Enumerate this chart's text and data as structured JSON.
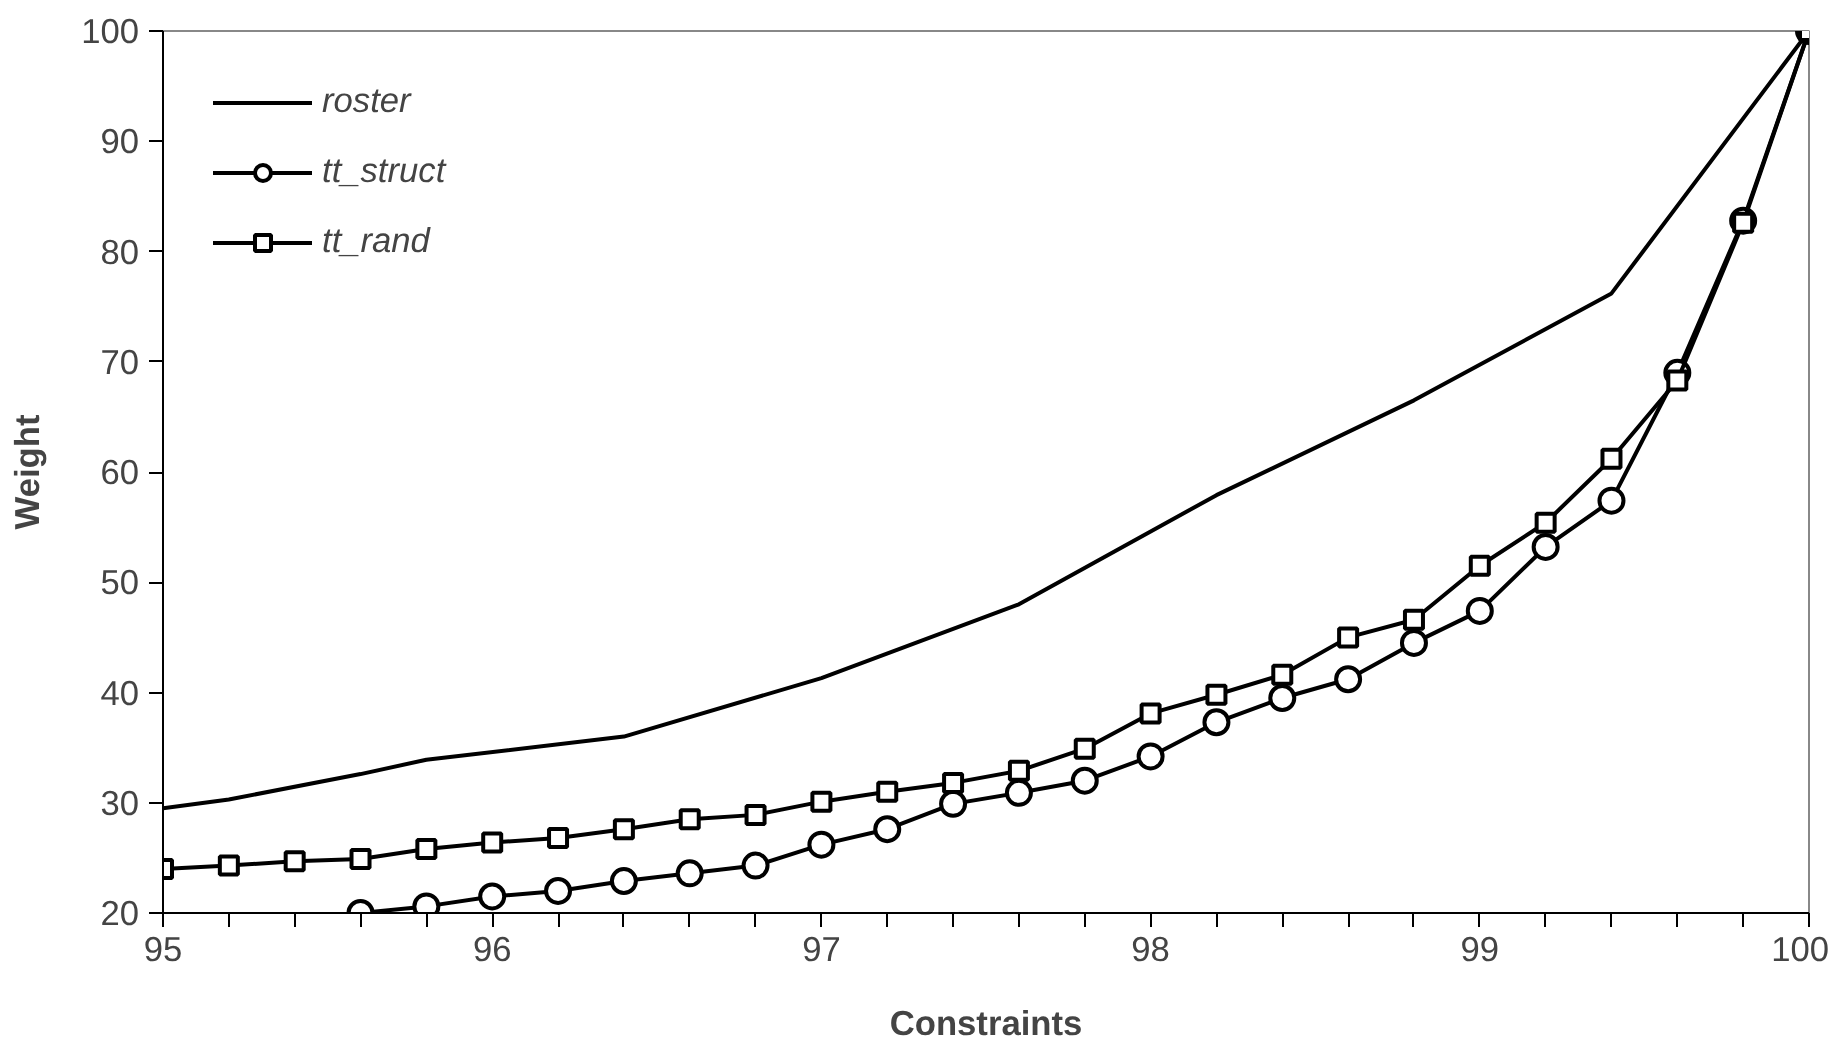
{
  "chart_data": {
    "type": "line",
    "xlabel": "Constraints",
    "ylabel": "Weight",
    "xlim": [
      95,
      100
    ],
    "ylim": [
      20,
      100
    ],
    "xticks": [
      95,
      {
        "value": 95.2,
        "label": null
      },
      {
        "value": 95.4,
        "label": null
      },
      {
        "value": 95.6,
        "label": null
      },
      {
        "value": 95.8,
        "label": null
      },
      96,
      {
        "value": 96.2,
        "label": null
      },
      {
        "value": 96.4,
        "label": null
      },
      {
        "value": 96.6,
        "label": null
      },
      {
        "value": 96.8,
        "label": null
      },
      97,
      {
        "value": 97.2,
        "label": null
      },
      {
        "value": 97.4,
        "label": null
      },
      {
        "value": 97.6,
        "label": null
      },
      {
        "value": 97.8,
        "label": null
      },
      98,
      {
        "value": 98.2,
        "label": null
      },
      {
        "value": 98.4,
        "label": null
      },
      {
        "value": 98.6,
        "label": null
      },
      {
        "value": 98.8,
        "label": null
      },
      99,
      {
        "value": 99.2,
        "label": null
      },
      {
        "value": 99.4,
        "label": null
      },
      {
        "value": 99.6,
        "label": null
      },
      {
        "value": 99.8,
        "label": null
      },
      100
    ],
    "yticks": [
      20,
      30,
      40,
      50,
      60,
      70,
      80,
      90,
      100
    ],
    "grid": false,
    "legend": "top left",
    "line_style": "solid",
    "x": [
      95,
      95.2,
      95.4,
      95.6,
      95.8,
      96,
      96.2,
      96.4,
      96.6,
      96.8,
      97,
      97.2,
      97.4,
      97.6,
      97.8,
      98,
      98.2,
      98.4,
      98.6,
      98.8,
      99,
      99.2,
      99.4,
      99.6,
      99.8,
      100
    ],
    "series": [
      {
        "name": "roster",
        "color": "#000000",
        "marker": "none",
        "x": [
          95,
          95.2,
          95.6,
          95.8,
          96.4,
          97,
          97.6,
          98.2,
          98.8,
          99.4,
          100
        ],
        "values": [
          29.5,
          30.3,
          32.6,
          33.9,
          36.0,
          41.3,
          48.0,
          57.9,
          66.5,
          76.2,
          100
        ]
      },
      {
        "name": "tt_struct",
        "color": "#000000",
        "marker": "circle",
        "values": [
          null,
          null,
          null,
          20.0,
          20.6,
          21.5,
          22.0,
          22.9,
          23.6,
          24.3,
          26.2,
          27.6,
          29.9,
          30.9,
          32.0,
          34.2,
          37.3,
          39.5,
          41.2,
          44.5,
          47.4,
          53.2,
          57.4,
          69.0,
          82.8,
          100
        ]
      },
      {
        "name": "tt_rand",
        "color": "#000000",
        "marker": "square",
        "values": [
          24.0,
          24.3,
          24.7,
          24.9,
          25.8,
          26.4,
          26.8,
          27.6,
          28.5,
          28.9,
          30.1,
          31.0,
          31.8,
          32.9,
          34.9,
          38.1,
          39.8,
          41.6,
          45.0,
          46.6,
          51.5,
          55.4,
          61.2,
          68.3,
          82.6,
          100
        ]
      }
    ]
  }
}
